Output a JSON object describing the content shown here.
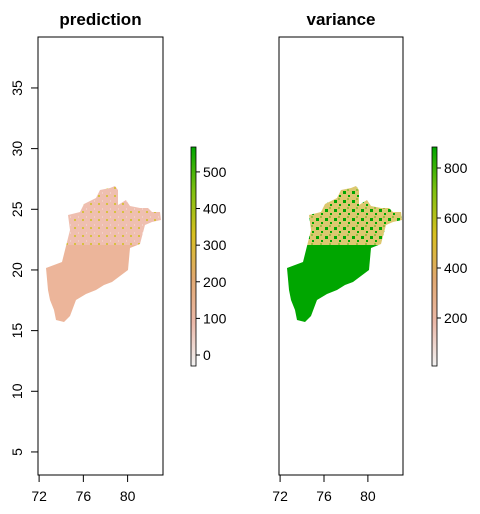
{
  "chart_data": [
    {
      "type": "raster",
      "title": "prediction",
      "xlim": [
        71.9,
        83.2
      ],
      "ylim": [
        3.1,
        39.2
      ],
      "xticks": [
        72,
        76,
        80
      ],
      "yticks": [
        5,
        10,
        15,
        20,
        25,
        30,
        35
      ],
      "zlim": [
        -30,
        568
      ],
      "zticks": [
        0,
        100,
        200,
        300,
        400,
        500
      ],
      "colors": [
        "#f2f2f2",
        "#ebb8a8",
        "#e0a870",
        "#d8c020",
        "#7fc010",
        "#00a600"
      ]
    },
    {
      "type": "raster",
      "title": "variance",
      "xlim": [
        71.9,
        83.2
      ],
      "ylim": [
        3.1,
        39.2
      ],
      "xticks": [
        72,
        76,
        80
      ],
      "zlim": [
        8,
        884
      ],
      "zticks": [
        200,
        400,
        600,
        800
      ],
      "colors": [
        "#f2f2f2",
        "#ebb8a8",
        "#e0a870",
        "#d8c020",
        "#7fc010",
        "#00a600"
      ]
    }
  ]
}
